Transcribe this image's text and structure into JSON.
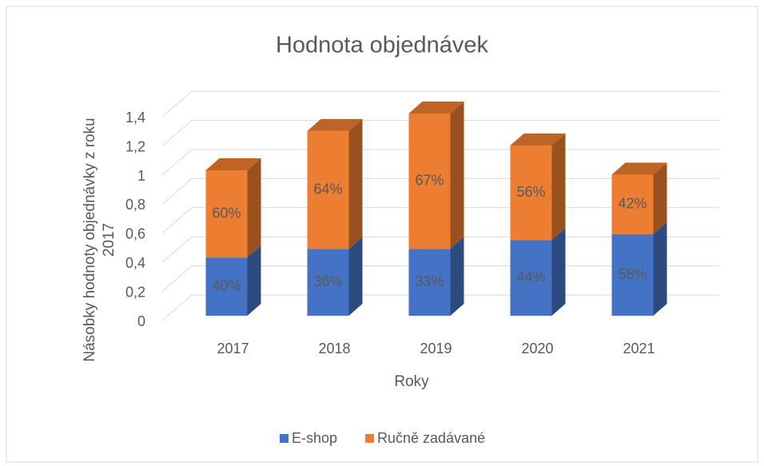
{
  "chart_data": {
    "type": "bar3d_stacked",
    "title": "Hodnota objednávek",
    "x_label": "Roky",
    "y_label": "Násobky hodnoty objednávky z roku 2017",
    "categories": [
      "2017",
      "2018",
      "2019",
      "2020",
      "2021"
    ],
    "series": [
      {
        "name": "E-shop",
        "color": "#4472c4",
        "values": [
          0.4,
          0.46,
          0.46,
          0.52,
          0.56
        ],
        "segment_labels": [
          "40%",
          "36%",
          "33%",
          "44%",
          "58%"
        ]
      },
      {
        "name": "Ručně zadávané",
        "color": "#ed7d31",
        "values": [
          0.6,
          0.81,
          0.93,
          0.65,
          0.41
        ],
        "segment_labels": [
          "60%",
          "64%",
          "67%",
          "56%",
          "42%"
        ]
      }
    ],
    "ylim": [
      0,
      1.4
    ],
    "yticks": [
      0,
      {
        "value": 0.2,
        "label": "0,2"
      },
      {
        "value": 0.4,
        "label": "0,4"
      },
      {
        "value": 0.6,
        "label": "0,6"
      },
      {
        "value": 0.8,
        "label": "0,8"
      },
      1,
      {
        "value": 1.2,
        "label": "1,2"
      },
      {
        "value": 1.4,
        "label": "1,4"
      }
    ],
    "grid": true,
    "legend": "bottom"
  }
}
